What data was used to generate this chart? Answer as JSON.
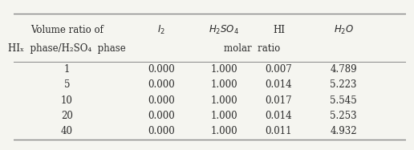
{
  "header_col0_line1": "Volume ratio of",
  "header_col0_line2": "HIₓ  phase/H₂SO₄  phase",
  "col_headers": [
    "I₂",
    "H₂SO₄",
    "HI",
    "H₂O"
  ],
  "col_headers_math": [
    "$I_2$",
    "$H_2SO_4$",
    "HI",
    "$H_2O$"
  ],
  "subheader": "molar  ratio",
  "rows": [
    [
      "1",
      "0.000",
      "1.000",
      "0.007",
      "4.789"
    ],
    [
      "5",
      "0.000",
      "1.000",
      "0.014",
      "5.223"
    ],
    [
      "10",
      "0.000",
      "1.000",
      "0.017",
      "5.545"
    ],
    [
      "20",
      "0.000",
      "1.000",
      "0.014",
      "5.253"
    ],
    [
      "40",
      "0.000",
      "1.000",
      "0.011",
      "4.932"
    ]
  ],
  "background_color": "#f5f5f0",
  "text_color": "#2a2a2a",
  "line_color": "#888888",
  "font_size": 8.5
}
